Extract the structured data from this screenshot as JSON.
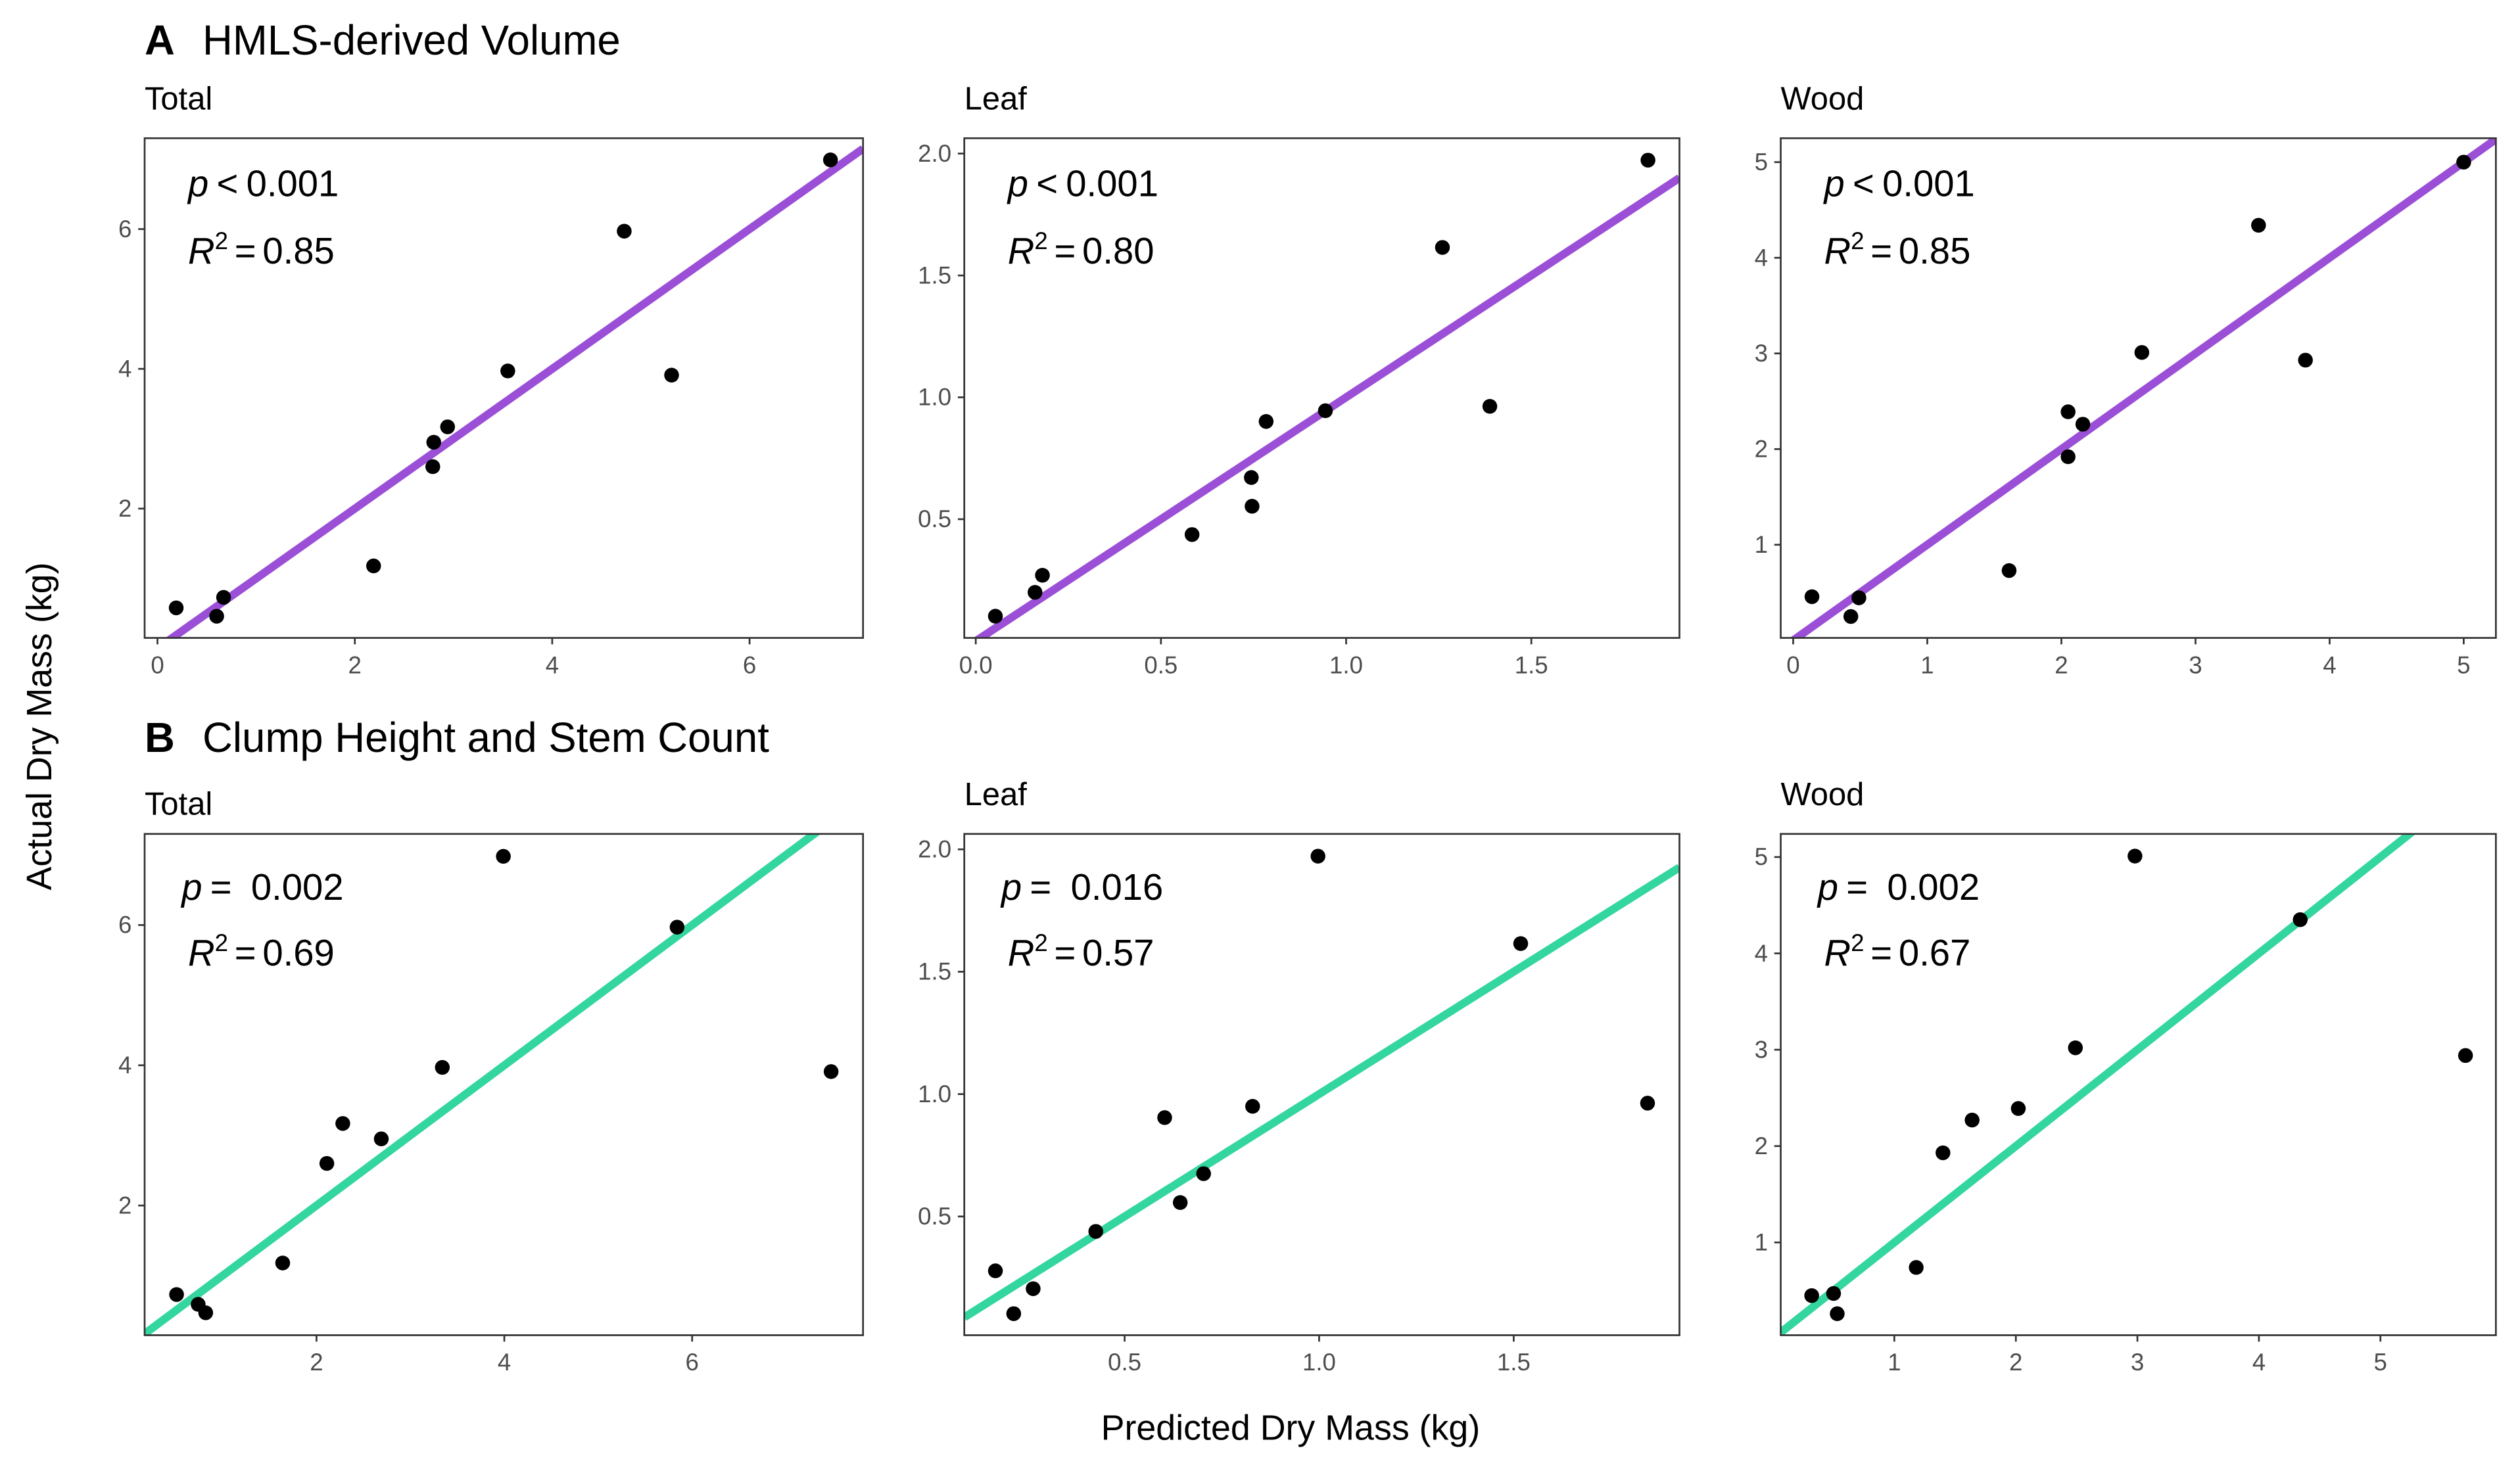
{
  "chart_data": {
    "type": "scatter",
    "ylabel": "Actual Dry Mass (kg)",
    "xlabel": "Predicted Dry Mass (kg)",
    "rows": [
      {
        "letter": "A",
        "title": "HMLS-derived Volume",
        "line_color": "#9b4fd6"
      },
      {
        "letter": "B",
        "title": "Clump Height and Stem Count",
        "line_color": "#33d69f"
      }
    ],
    "point_color": "#000000",
    "grid": false,
    "reference_line": "1:1",
    "panels": [
      {
        "row": 0,
        "title": "Total",
        "p_op": "<",
        "p_value": "0.001",
        "r2_value": "0.85",
        "xlim": [
          -0.13,
          7.15
        ],
        "ylim": [
          0.15,
          7.3
        ],
        "xticks": [
          "0",
          "2",
          "4",
          "6"
        ],
        "yticks": [
          "2",
          "4",
          "6"
        ],
        "line": {
          "slope": 1,
          "intercept": 0
        },
        "points": [
          [
            0.19,
            0.58
          ],
          [
            0.6,
            0.46
          ],
          [
            0.67,
            0.73
          ],
          [
            2.19,
            1.18
          ],
          [
            2.79,
            2.6
          ],
          [
            2.8,
            2.95
          ],
          [
            2.94,
            3.17
          ],
          [
            3.55,
            3.97
          ],
          [
            4.73,
            5.97
          ],
          [
            5.21,
            3.91
          ],
          [
            6.82,
            6.99
          ]
        ]
      },
      {
        "row": 0,
        "title": "Leaf",
        "p_op": "<",
        "p_value": "0.001",
        "r2_value": "0.80",
        "xlim": [
          -0.031,
          1.9
        ],
        "ylim": [
          0.013,
          2.063
        ],
        "xticks": [
          "0.0",
          "0.5",
          "1.0",
          "1.5"
        ],
        "yticks": [
          "0.5",
          "1.0",
          "1.5",
          "2.0"
        ],
        "line": {
          "slope": 1,
          "intercept": 0
        },
        "points": [
          [
            0.053,
            0.102
          ],
          [
            0.16,
            0.2
          ],
          [
            0.18,
            0.27
          ],
          [
            0.584,
            0.437
          ],
          [
            0.744,
            0.671
          ],
          [
            0.746,
            0.553
          ],
          [
            0.784,
            0.901
          ],
          [
            0.944,
            0.945
          ],
          [
            1.26,
            1.615
          ],
          [
            1.388,
            0.963
          ],
          [
            1.815,
            1.973
          ]
        ]
      },
      {
        "row": 0,
        "title": "Wood",
        "p_op": "<",
        "p_value": "0.001",
        "r2_value": "0.85",
        "xlim": [
          -0.093,
          5.24
        ],
        "ylim": [
          0.026,
          5.25
        ],
        "xticks": [
          "0",
          "1",
          "2",
          "3",
          "4",
          "5"
        ],
        "yticks": [
          "1",
          "2",
          "3",
          "4",
          "5"
        ],
        "line": {
          "slope": 1,
          "intercept": 0
        },
        "points": [
          [
            0.14,
            0.457
          ],
          [
            0.43,
            0.25
          ],
          [
            0.49,
            0.445
          ],
          [
            1.61,
            0.73
          ],
          [
            2.05,
            1.92
          ],
          [
            2.05,
            2.39
          ],
          [
            2.16,
            2.26
          ],
          [
            2.6,
            3.01
          ],
          [
            3.47,
            4.34
          ],
          [
            3.82,
            2.93
          ],
          [
            5.0,
            5.0
          ]
        ]
      },
      {
        "row": 1,
        "title": "Total",
        "p_op": "=",
        "p_value": "0.002",
        "r2_value": "0.69",
        "xlim": [
          0.17,
          7.82
        ],
        "ylim": [
          0.15,
          7.3
        ],
        "xticks": [
          "2",
          "4",
          "6"
        ],
        "yticks": [
          "2",
          "4",
          "6"
        ],
        "line": {
          "slope": 1,
          "intercept": 0
        },
        "points": [
          [
            0.51,
            0.73
          ],
          [
            0.74,
            0.59
          ],
          [
            0.82,
            0.47
          ],
          [
            1.64,
            1.18
          ],
          [
            2.11,
            2.6
          ],
          [
            2.28,
            3.17
          ],
          [
            2.69,
            2.95
          ],
          [
            3.34,
            3.97
          ],
          [
            3.99,
            6.98
          ],
          [
            5.84,
            5.97
          ],
          [
            7.48,
            3.91
          ]
        ]
      },
      {
        "row": 1,
        "title": "Leaf",
        "p_op": "=",
        "p_value": "0.016",
        "r2_value": "0.57",
        "xlim": [
          0.088,
          1.926
        ],
        "ylim": [
          0.015,
          2.063
        ],
        "xticks": [
          "0.5",
          "1.0",
          "1.5"
        ],
        "yticks": [
          "0.5",
          "1.0",
          "1.5",
          "2.0"
        ],
        "line": {
          "slope": 1,
          "intercept": 0
        },
        "points": [
          [
            0.168,
            0.278
          ],
          [
            0.215,
            0.103
          ],
          [
            0.265,
            0.205
          ],
          [
            0.426,
            0.439
          ],
          [
            0.603,
            0.904
          ],
          [
            0.643,
            0.557
          ],
          [
            0.703,
            0.675
          ],
          [
            0.829,
            0.95
          ],
          [
            0.997,
            1.972
          ],
          [
            1.518,
            1.615
          ],
          [
            1.844,
            0.963
          ]
        ]
      },
      {
        "row": 1,
        "title": "Wood",
        "p_op": "=",
        "p_value": "0.002",
        "r2_value": "0.67",
        "xlim": [
          0.065,
          5.95
        ],
        "ylim": [
          0.037,
          5.24
        ],
        "xticks": [
          "1",
          "2",
          "3",
          "4",
          "5"
        ],
        "yticks": [
          "1",
          "2",
          "3",
          "4",
          "5"
        ],
        "line": {
          "slope": 1,
          "intercept": 0
        },
        "points": [
          [
            0.32,
            0.448
          ],
          [
            0.5,
            0.47
          ],
          [
            0.53,
            0.26
          ],
          [
            1.18,
            0.74
          ],
          [
            1.4,
            1.93
          ],
          [
            1.64,
            2.27
          ],
          [
            2.02,
            2.39
          ],
          [
            2.49,
            3.02
          ],
          [
            2.98,
            5.01
          ],
          [
            4.34,
            4.35
          ],
          [
            5.7,
            2.94
          ]
        ]
      }
    ],
    "p_symbol": "p",
    "r2_symbol": "R",
    "r2_exp": "2"
  }
}
